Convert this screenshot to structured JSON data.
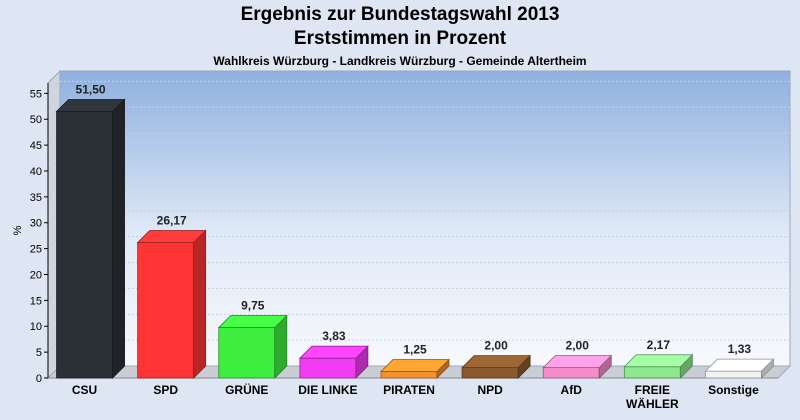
{
  "chart_data": {
    "type": "bar",
    "title": "Ergebnis zur Bundestagswahl 2013",
    "subtitle": "Erststimmen in Prozent",
    "caption": "Wahlkreis Würzburg - Landkreis Würzburg - Gemeinde Altertheim",
    "ylabel": "%",
    "ylim": [
      0,
      57
    ],
    "yticks": [
      0,
      5,
      10,
      15,
      20,
      25,
      30,
      35,
      40,
      45,
      50,
      55
    ],
    "grid": true,
    "categories": [
      [
        "CSU"
      ],
      [
        "SPD"
      ],
      [
        "GRÜNE"
      ],
      [
        "DIE LINKE"
      ],
      [
        "PIRATEN"
      ],
      [
        "NPD"
      ],
      [
        "AfD"
      ],
      [
        "FREIE",
        "WÄHLER"
      ],
      [
        "Sonstige"
      ]
    ],
    "values": [
      51.5,
      26.17,
      9.75,
      3.83,
      1.25,
      2.0,
      2.0,
      2.17,
      1.33
    ],
    "value_labels": [
      "51,50",
      "26,17",
      "9,75",
      "3,83",
      "1,25",
      "2,00",
      "2,00",
      "2,17",
      "1,33"
    ],
    "colors": [
      "#2b2f36",
      "#ff3535",
      "#3fef3f",
      "#f23cf2",
      "#f5912d",
      "#8a5a2e",
      "#f58dcc",
      "#8ee88e",
      "#f2f2f2"
    ]
  }
}
